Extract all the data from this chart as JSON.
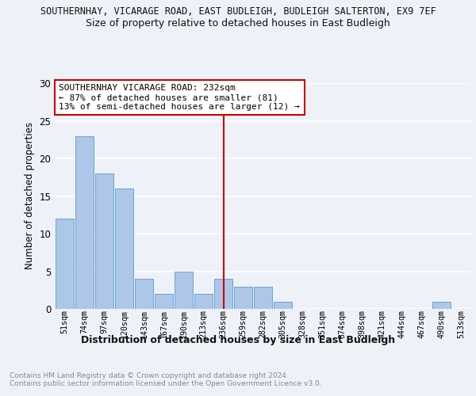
{
  "title1": "SOUTHERNHAY, VICARAGE ROAD, EAST BUDLEIGH, BUDLEIGH SALTERTON, EX9 7EF",
  "title2": "Size of property relative to detached houses in East Budleigh",
  "xlabel": "Distribution of detached houses by size in East Budleigh",
  "ylabel": "Number of detached properties",
  "categories": [
    "51sqm",
    "74sqm",
    "97sqm",
    "120sqm",
    "143sqm",
    "167sqm",
    "190sqm",
    "213sqm",
    "236sqm",
    "259sqm",
    "282sqm",
    "305sqm",
    "328sqm",
    "351sqm",
    "374sqm",
    "398sqm",
    "421sqm",
    "444sqm",
    "467sqm",
    "490sqm",
    "513sqm"
  ],
  "values": [
    12,
    23,
    18,
    16,
    4,
    2,
    5,
    2,
    4,
    3,
    3,
    1,
    0,
    0,
    0,
    0,
    0,
    0,
    0,
    1,
    0
  ],
  "bar_color": "#aec6e8",
  "bar_edge_color": "#5b9bd5",
  "red_line_index": 8,
  "annotation_title": "SOUTHERNHAY VICARAGE ROAD: 232sqm",
  "annotation_line2": "← 87% of detached houses are smaller (81)",
  "annotation_line3": "13% of semi-detached houses are larger (12) →",
  "annotation_box_color": "#ffffff",
  "annotation_box_edge": "#cc0000",
  "red_line_color": "#cc0000",
  "ylim": [
    0,
    30
  ],
  "yticks": [
    0,
    5,
    10,
    15,
    20,
    25,
    30
  ],
  "footer": "Contains HM Land Registry data © Crown copyright and database right 2024.\nContains public sector information licensed under the Open Government Licence v3.0.",
  "background_color": "#eef2f8",
  "grid_color": "#ffffff"
}
